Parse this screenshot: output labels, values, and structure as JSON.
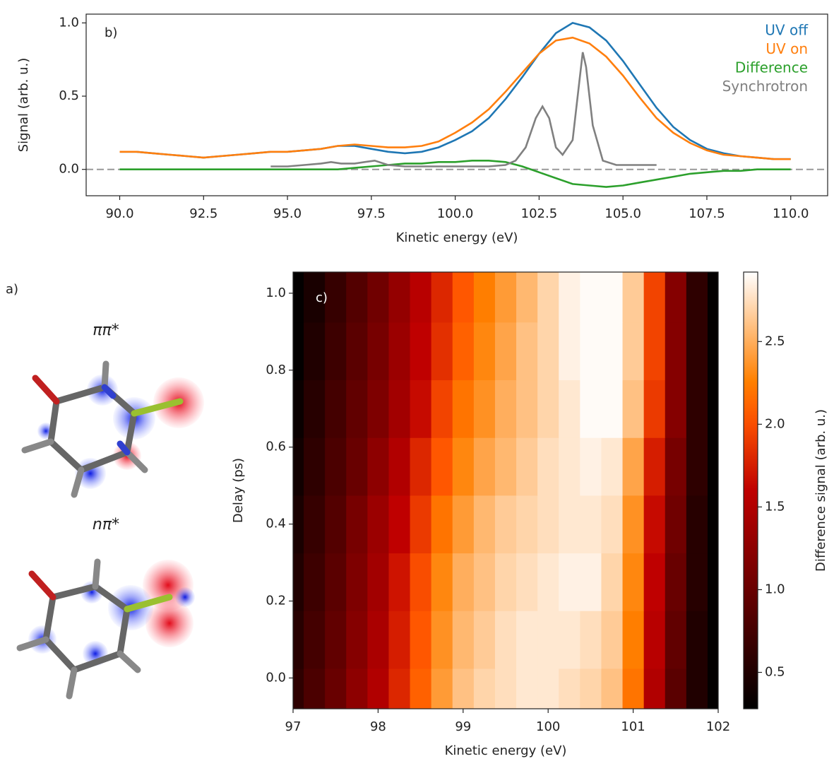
{
  "panel_a": {
    "label": "a)",
    "states": [
      "ππ*",
      "nπ*"
    ]
  },
  "chart_data": [
    {
      "type": "line",
      "panel_label": "b)",
      "x_label": "Kinetic energy (eV)",
      "y_label": "Signal (arb. u.)",
      "xlim": [
        89,
        111.1
      ],
      "ylim": [
        -0.18,
        1.06
      ],
      "xticks": [
        {
          "value": 90,
          "label": "90.0"
        },
        92.5,
        {
          "value": 95,
          "label": "95.0"
        },
        97.5,
        {
          "value": 100,
          "label": "100.0"
        },
        102.5,
        {
          "value": 105,
          "label": "105.0"
        },
        107.5,
        {
          "value": 110,
          "label": "110.0"
        }
      ],
      "yticks": [
        {
          "value": 0,
          "label": "0.0"
        },
        0.5,
        {
          "value": 1,
          "label": "1.0"
        }
      ],
      "hline": 0,
      "legend": "upper right",
      "x": [
        90,
        90.5,
        91,
        91.5,
        92,
        92.5,
        93,
        93.5,
        94,
        94.5,
        95,
        95.5,
        96,
        96.5,
        97,
        97.5,
        98,
        98.5,
        99,
        99.5,
        100,
        100.5,
        101,
        101.5,
        102,
        102.5,
        103,
        103.5,
        104,
        104.5,
        105,
        105.5,
        106,
        106.5,
        107,
        107.5,
        108,
        108.5,
        109,
        109.5,
        110
      ],
      "series": [
        {
          "name": "UV off",
          "color": "#1f77b4",
          "values": [
            0.12,
            0.12,
            0.11,
            0.1,
            0.09,
            0.08,
            0.09,
            0.1,
            0.11,
            0.12,
            0.12,
            0.13,
            0.14,
            0.16,
            0.16,
            0.14,
            0.12,
            0.11,
            0.12,
            0.15,
            0.2,
            0.26,
            0.35,
            0.48,
            0.63,
            0.79,
            0.93,
            1.0,
            0.97,
            0.88,
            0.74,
            0.58,
            0.42,
            0.29,
            0.2,
            0.14,
            0.11,
            0.09,
            0.08,
            0.07,
            0.07
          ]
        },
        {
          "name": "UV on",
          "color": "#ff7f0e",
          "values": [
            0.12,
            0.12,
            0.11,
            0.1,
            0.09,
            0.08,
            0.09,
            0.1,
            0.11,
            0.12,
            0.12,
            0.13,
            0.14,
            0.16,
            0.17,
            0.16,
            0.15,
            0.15,
            0.16,
            0.19,
            0.25,
            0.32,
            0.41,
            0.53,
            0.66,
            0.79,
            0.88,
            0.9,
            0.86,
            0.77,
            0.64,
            0.49,
            0.35,
            0.25,
            0.18,
            0.13,
            0.1,
            0.09,
            0.08,
            0.07,
            0.07
          ]
        },
        {
          "name": "Difference",
          "color": "#2ca02c",
          "values": [
            0,
            0,
            0,
            0,
            0,
            0,
            0,
            0,
            0,
            0,
            0,
            0,
            0,
            0,
            0.01,
            0.02,
            0.03,
            0.04,
            0.04,
            0.05,
            0.05,
            0.06,
            0.06,
            0.05,
            0.02,
            -0.02,
            -0.06,
            -0.1,
            -0.11,
            -0.12,
            -0.11,
            -0.09,
            -0.07,
            -0.05,
            -0.03,
            -0.02,
            -0.01,
            -0.01,
            0,
            0,
            0
          ]
        },
        {
          "name": "Synchrotron",
          "color": "#808080",
          "x": [
            94.5,
            95,
            95.5,
            96,
            96.3,
            96.6,
            97,
            97.3,
            97.6,
            98,
            98.5,
            99,
            99.5,
            100,
            100.5,
            101,
            101.5,
            101.8,
            102.1,
            102.4,
            102.6,
            102.8,
            103,
            103.2,
            103.5,
            103.7,
            103.8,
            103.9,
            104.1,
            104.4,
            104.8,
            105.5,
            106
          ],
          "values": [
            0.02,
            0.02,
            0.03,
            0.04,
            0.05,
            0.04,
            0.04,
            0.05,
            0.06,
            0.03,
            0.02,
            0.02,
            0.02,
            0.02,
            0.02,
            0.02,
            0.03,
            0.06,
            0.15,
            0.35,
            0.43,
            0.35,
            0.15,
            0.1,
            0.2,
            0.6,
            0.8,
            0.7,
            0.3,
            0.06,
            0.03,
            0.03,
            0.03
          ]
        }
      ]
    },
    {
      "type": "heatmap",
      "panel_label": "c)",
      "x_label": "Kinetic energy (eV)",
      "y_label": "Delay (ps)",
      "colorbar_label": "Difference signal (arb. u.)",
      "colormap": "gist_heat",
      "xlim": [
        97,
        102
      ],
      "ylim": [
        -0.08,
        1.055
      ],
      "zlim": [
        0.28,
        2.92
      ],
      "xticks": [
        97,
        98,
        99,
        100,
        101,
        102
      ],
      "yticks": [
        {
          "value": 0,
          "label": "0.0"
        },
        0.2,
        0.4,
        0.6,
        0.8,
        {
          "value": 1,
          "label": "1.0"
        }
      ],
      "zticks": [
        0.5,
        {
          "value": 1,
          "label": "1.0"
        },
        1.5,
        {
          "value": 2,
          "label": "2.0"
        },
        2.5
      ],
      "x": [
        97,
        97.25,
        97.5,
        97.75,
        98,
        98.25,
        98.5,
        98.75,
        99,
        99.25,
        99.5,
        99.75,
        100,
        100.25,
        100.5,
        100.75,
        101,
        101.25,
        101.5,
        101.75,
        102
      ],
      "y": [
        -0.05,
        0.1,
        0.25,
        0.4,
        0.55,
        0.7,
        0.85,
        1.0
      ],
      "z": [
        [
          0.6,
          0.8,
          1.0,
          1.25,
          1.5,
          1.8,
          2.1,
          2.4,
          2.6,
          2.7,
          2.75,
          2.8,
          2.8,
          2.75,
          2.7,
          2.6,
          2.2,
          1.5,
          0.9,
          0.5,
          0.3
        ],
        [
          0.55,
          0.75,
          0.95,
          1.2,
          1.45,
          1.75,
          2.05,
          2.35,
          2.55,
          2.65,
          2.75,
          2.8,
          2.8,
          2.8,
          2.75,
          2.65,
          2.25,
          1.55,
          0.95,
          0.5,
          0.3
        ],
        [
          0.5,
          0.7,
          0.9,
          1.15,
          1.4,
          1.7,
          2.0,
          2.3,
          2.5,
          2.6,
          2.7,
          2.75,
          2.8,
          2.85,
          2.85,
          2.7,
          2.3,
          1.6,
          1.0,
          0.55,
          0.3
        ],
        [
          0.45,
          0.65,
          0.85,
          1.1,
          1.35,
          1.6,
          1.9,
          2.2,
          2.4,
          2.55,
          2.65,
          2.7,
          2.75,
          2.8,
          2.8,
          2.75,
          2.35,
          1.65,
          1.05,
          0.55,
          0.3
        ],
        [
          0.4,
          0.6,
          0.8,
          1.0,
          1.25,
          1.5,
          1.8,
          2.05,
          2.3,
          2.45,
          2.55,
          2.65,
          2.75,
          2.8,
          2.85,
          2.8,
          2.45,
          1.75,
          1.1,
          0.6,
          0.3
        ],
        [
          0.35,
          0.55,
          0.75,
          0.95,
          1.15,
          1.4,
          1.65,
          1.95,
          2.2,
          2.35,
          2.5,
          2.6,
          2.7,
          2.8,
          2.9,
          2.9,
          2.6,
          1.9,
          1.2,
          0.6,
          0.3
        ],
        [
          0.3,
          0.5,
          0.7,
          0.9,
          1.1,
          1.35,
          1.6,
          1.85,
          2.1,
          2.3,
          2.45,
          2.6,
          2.7,
          2.85,
          2.9,
          2.9,
          2.65,
          1.95,
          1.2,
          0.6,
          0.3
        ],
        [
          0.3,
          0.45,
          0.65,
          0.85,
          1.05,
          1.3,
          1.55,
          1.8,
          2.05,
          2.25,
          2.4,
          2.55,
          2.7,
          2.85,
          2.9,
          2.9,
          2.65,
          1.95,
          1.2,
          0.6,
          0.3
        ]
      ]
    }
  ]
}
